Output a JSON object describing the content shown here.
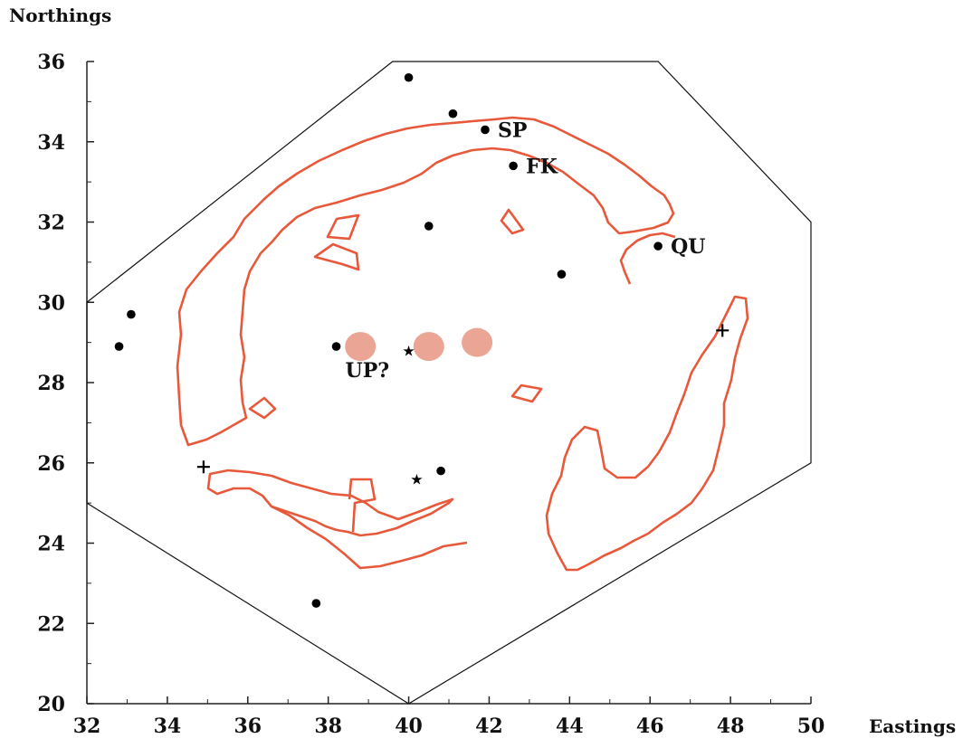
{
  "axes": {
    "x_title": "Eastings",
    "y_title": "Northings",
    "x_ticks": [
      "32",
      "34",
      "36",
      "38",
      "40",
      "42",
      "44",
      "46",
      "48",
      "50"
    ],
    "y_ticks": [
      "20",
      "22",
      "24",
      "26",
      "28",
      "30",
      "32",
      "34",
      "36"
    ],
    "x_range": [
      32,
      50
    ],
    "y_range": [
      20,
      36
    ]
  },
  "colors": {
    "contour": "#e8583a",
    "blob": "#eba595",
    "boundary": "#111111",
    "marker": "#000000"
  },
  "boundary_polygon": [
    [
      32,
      30
    ],
    [
      39.6,
      36
    ],
    [
      46.2,
      36
    ],
    [
      50,
      32
    ],
    [
      50,
      26
    ],
    [
      40,
      20
    ],
    [
      32,
      25
    ]
  ],
  "sites": [
    {
      "type": "dot",
      "x": 40.0,
      "y": 35.6,
      "label": ""
    },
    {
      "type": "dot",
      "x": 41.1,
      "y": 34.7,
      "label": ""
    },
    {
      "type": "dot",
      "x": 41.9,
      "y": 34.3,
      "label": "SP"
    },
    {
      "type": "dot",
      "x": 42.6,
      "y": 33.4,
      "label": "FK"
    },
    {
      "type": "dot",
      "x": 40.5,
      "y": 31.9,
      "label": ""
    },
    {
      "type": "dot",
      "x": 46.2,
      "y": 31.4,
      "label": "QU"
    },
    {
      "type": "dot",
      "x": 43.8,
      "y": 30.7,
      "label": ""
    },
    {
      "type": "dot",
      "x": 33.1,
      "y": 29.7,
      "label": ""
    },
    {
      "type": "dot",
      "x": 32.8,
      "y": 28.9,
      "label": ""
    },
    {
      "type": "dot",
      "x": 38.2,
      "y": 28.9,
      "label": "UP?"
    },
    {
      "type": "dot",
      "x": 40.8,
      "y": 25.8,
      "label": ""
    },
    {
      "type": "dot",
      "x": 37.7,
      "y": 22.5,
      "label": ""
    },
    {
      "type": "star",
      "x": 40.0,
      "y": 28.8,
      "label": ""
    },
    {
      "type": "star",
      "x": 40.2,
      "y": 25.6,
      "label": ""
    },
    {
      "type": "cross",
      "x": 34.9,
      "y": 25.9,
      "label": ""
    },
    {
      "type": "cross",
      "x": 47.8,
      "y": 29.3,
      "label": ""
    }
  ],
  "anomaly_blobs": [
    {
      "x": 38.8,
      "y": 28.9
    },
    {
      "x": 40.5,
      "y": 28.9
    },
    {
      "x": 41.7,
      "y": 29.0
    }
  ]
}
